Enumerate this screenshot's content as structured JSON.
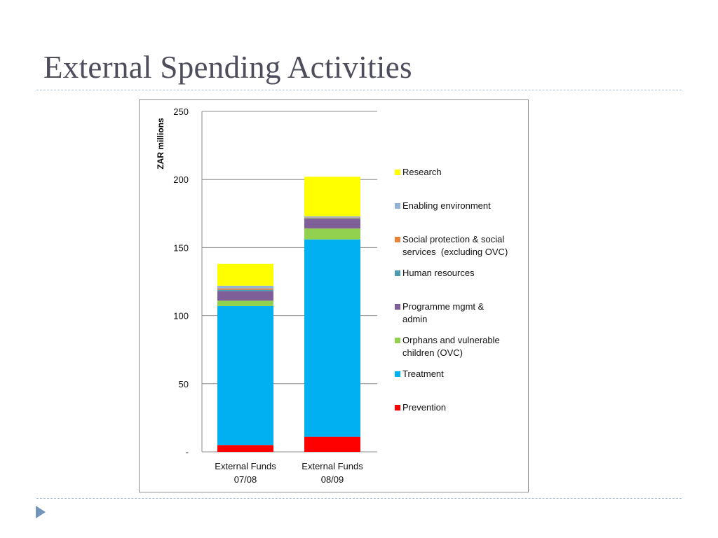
{
  "slide": {
    "title": "External Spending Activities"
  },
  "chart_data": {
    "type": "bar",
    "stacked": true,
    "title": "",
    "xlabel": "",
    "ylabel": "ZAR millions",
    "ylim": [
      0,
      250
    ],
    "yticks": [
      "-",
      "50",
      "100",
      "150",
      "200",
      "250"
    ],
    "ytick_values": [
      0,
      50,
      100,
      150,
      200,
      250
    ],
    "grid": true,
    "legend_position": "right",
    "categories": [
      "External Funds 07/08",
      "External Funds 08/09"
    ],
    "category_lines": [
      [
        "External Funds",
        "07/08"
      ],
      [
        "External Funds",
        "08/09"
      ]
    ],
    "series": [
      {
        "name": "Prevention",
        "color": "#ff0000",
        "values": [
          5,
          11
        ]
      },
      {
        "name": "Treatment",
        "color": "#00b0f0",
        "values": [
          102,
          145
        ]
      },
      {
        "name": "Orphans and vulnerable children (OVC)",
        "color": "#92d050",
        "values": [
          4,
          8
        ]
      },
      {
        "name": "Programme mgmt & admin",
        "color": "#7f5f97",
        "values": [
          7,
          7
        ]
      },
      {
        "name": "Human resources",
        "color": "#4a9ab0",
        "values": [
          1,
          0.5
        ]
      },
      {
        "name": "Social protection & social services  (excluding OVC)",
        "color": "#e8823a",
        "values": [
          1,
          0.5
        ]
      },
      {
        "name": "Enabling environment",
        "color": "#95b3d7",
        "values": [
          2,
          1
        ]
      },
      {
        "name": "Research",
        "color": "#ffff00",
        "values": [
          16,
          29
        ]
      }
    ],
    "legend": [
      {
        "lines": [
          "Research"
        ],
        "color": "#ffff00"
      },
      {
        "lines": [
          "Enabling environment"
        ],
        "color": "#95b3d7"
      },
      {
        "lines": [
          "Social protection & social",
          "services  (excluding OVC)"
        ],
        "color": "#e8823a"
      },
      {
        "lines": [
          "Human resources"
        ],
        "color": "#4a9ab0"
      },
      {
        "lines": [
          "Programme mgmt &",
          "admin"
        ],
        "color": "#7f5f97"
      },
      {
        "lines": [
          "Orphans and vulnerable",
          "children (OVC)"
        ],
        "color": "#92d050"
      },
      {
        "lines": [
          "Treatment"
        ],
        "color": "#00b0f0"
      },
      {
        "lines": [
          "Prevention"
        ],
        "color": "#ff0000"
      }
    ]
  }
}
